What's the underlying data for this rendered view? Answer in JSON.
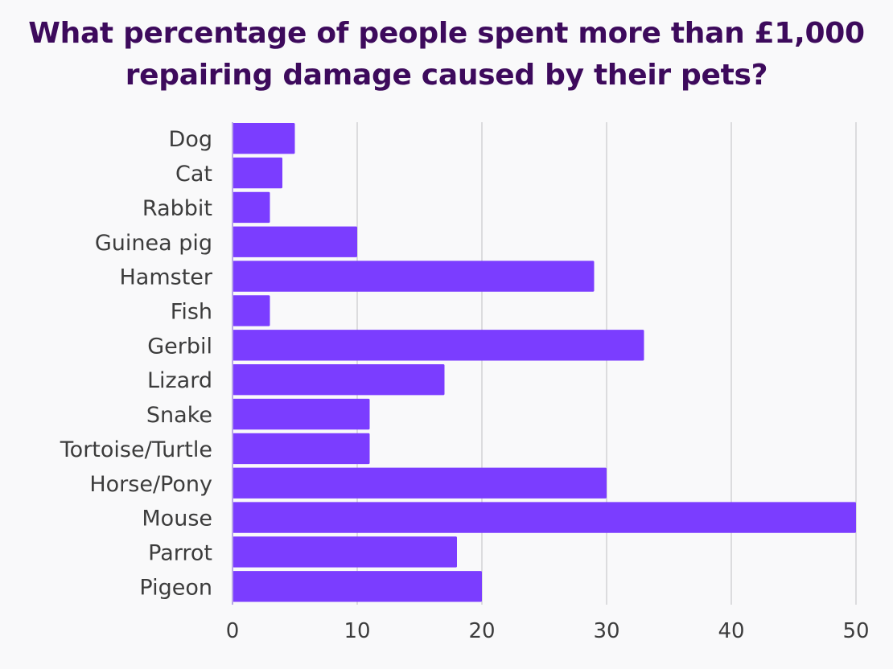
{
  "chart_data": {
    "type": "bar",
    "orientation": "horizontal",
    "title_lines": [
      "What percentage of people spent more than £1,000",
      "repairing damage caused by their pets?"
    ],
    "categories": [
      "Dog",
      "Cat",
      "Rabbit",
      "Guinea pig",
      "Hamster",
      "Fish",
      "Gerbil",
      "Lizard",
      "Snake",
      "Tortoise/Turtle",
      "Horse/Pony",
      "Mouse",
      "Parrot",
      "Pigeon"
    ],
    "values": [
      5,
      4,
      3,
      10,
      29,
      3,
      33,
      17,
      11,
      11,
      30,
      50,
      18,
      20
    ],
    "xlabel": "",
    "ylabel": "",
    "xlim": [
      0,
      50
    ],
    "xticks": [
      "0",
      "10",
      "20",
      "30",
      "40",
      "50"
    ],
    "grid": true,
    "bar_color": "#7b3dff",
    "title_color": "#3d0a5c"
  }
}
